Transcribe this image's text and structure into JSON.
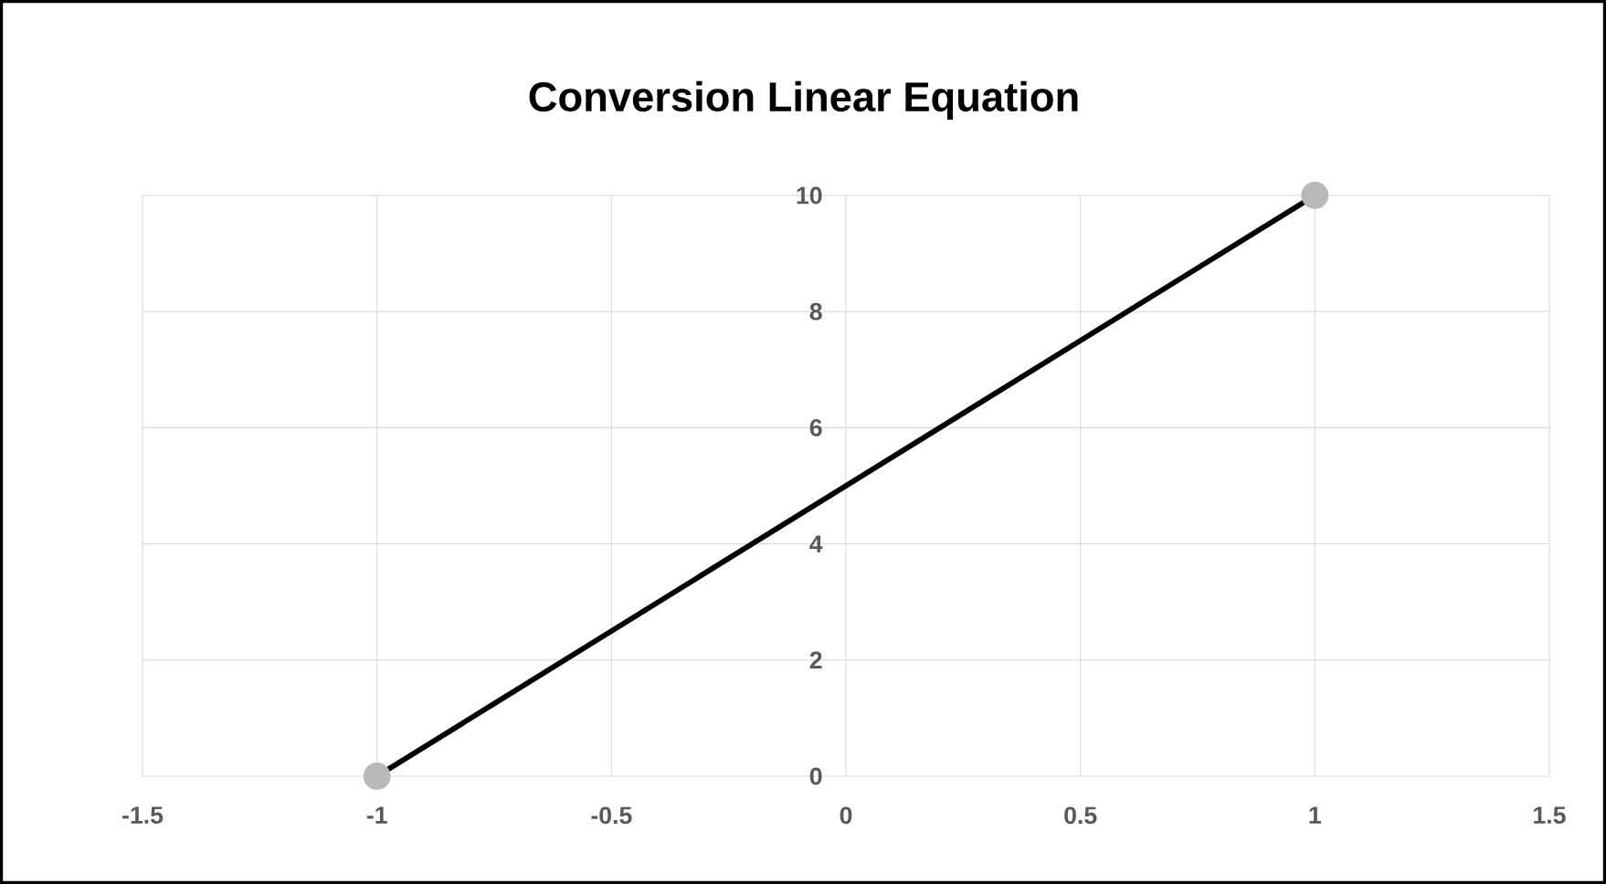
{
  "chart_data": {
    "type": "line",
    "title": "Conversion Linear Equation",
    "x": [
      -1,
      1
    ],
    "series": [
      {
        "color": "#000000",
        "values": [
          0,
          10
        ]
      }
    ],
    "xlim": [
      -1.5,
      1.5
    ],
    "ylim": [
      0,
      10
    ],
    "xticks": [
      -1.5,
      -1,
      -0.5,
      0,
      0.5,
      1,
      1.5
    ],
    "yticks": [
      0,
      2,
      4,
      6,
      8,
      10
    ],
    "grid": true,
    "marker": "circle",
    "line_style": "solid"
  }
}
